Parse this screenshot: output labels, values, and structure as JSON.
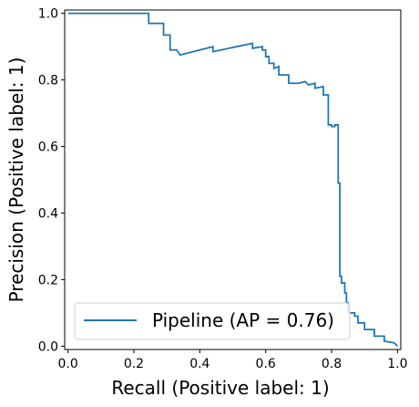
{
  "chart_data": {
    "type": "line",
    "xlabel": "Recall (Positive label: 1)",
    "ylabel": "Precision (Positive label: 1)",
    "xlim": [
      -0.01,
      1.01
    ],
    "ylim": [
      -0.01,
      1.01
    ],
    "xticks": [
      {
        "value": 0.0,
        "label": "0.0"
      },
      {
        "value": 0.2,
        "label": "0.2"
      },
      {
        "value": 0.4,
        "label": "0.4"
      },
      {
        "value": 0.6,
        "label": "0.6"
      },
      {
        "value": 0.8,
        "label": "0.8"
      },
      {
        "value": 1.0,
        "label": "1.0"
      }
    ],
    "yticks": [
      {
        "value": 0.0,
        "label": "0.0"
      },
      {
        "value": 0.2,
        "label": "0.2"
      },
      {
        "value": 0.4,
        "label": "0.4"
      },
      {
        "value": 0.6,
        "label": "0.6"
      },
      {
        "value": 0.8,
        "label": "0.8"
      },
      {
        "value": 1.0,
        "label": "1.0"
      }
    ],
    "grid": false,
    "legend": {
      "placement": "lower-left",
      "entry": "Pipeline (AP = 0.76)"
    },
    "series": [
      {
        "name": "Pipeline (AP = 0.76)",
        "color": "#1f77b4",
        "drawstyle": "steps",
        "points": [
          [
            0.0,
            1.0
          ],
          [
            0.245,
            1.0
          ],
          [
            0.245,
            0.97
          ],
          [
            0.29,
            0.97
          ],
          [
            0.29,
            0.935
          ],
          [
            0.31,
            0.935
          ],
          [
            0.31,
            0.89
          ],
          [
            0.33,
            0.89
          ],
          [
            0.33,
            0.89
          ],
          [
            0.34,
            0.875
          ],
          [
            0.44,
            0.9
          ],
          [
            0.44,
            0.885
          ],
          [
            0.56,
            0.91
          ],
          [
            0.56,
            0.895
          ],
          [
            0.59,
            0.9
          ],
          [
            0.59,
            0.89
          ],
          [
            0.6,
            0.89
          ],
          [
            0.6,
            0.87
          ],
          [
            0.61,
            0.87
          ],
          [
            0.61,
            0.85
          ],
          [
            0.625,
            0.85
          ],
          [
            0.625,
            0.835
          ],
          [
            0.64,
            0.84
          ],
          [
            0.64,
            0.815
          ],
          [
            0.67,
            0.815
          ],
          [
            0.67,
            0.79
          ],
          [
            0.7,
            0.79
          ],
          [
            0.72,
            0.795
          ],
          [
            0.73,
            0.785
          ],
          [
            0.75,
            0.79
          ],
          [
            0.75,
            0.775
          ],
          [
            0.775,
            0.78
          ],
          [
            0.775,
            0.755
          ],
          [
            0.79,
            0.755
          ],
          [
            0.79,
            0.665
          ],
          [
            0.8,
            0.665
          ],
          [
            0.8,
            0.66
          ],
          [
            0.81,
            0.66
          ],
          [
            0.81,
            0.665
          ],
          [
            0.82,
            0.665
          ],
          [
            0.82,
            0.49
          ],
          [
            0.825,
            0.49
          ],
          [
            0.825,
            0.21
          ],
          [
            0.83,
            0.21
          ],
          [
            0.83,
            0.19
          ],
          [
            0.84,
            0.19
          ],
          [
            0.84,
            0.16
          ],
          [
            0.845,
            0.16
          ],
          [
            0.845,
            0.13
          ],
          [
            0.85,
            0.13
          ],
          [
            0.85,
            0.1
          ],
          [
            0.87,
            0.1
          ],
          [
            0.87,
            0.09
          ],
          [
            0.88,
            0.09
          ],
          [
            0.88,
            0.07
          ],
          [
            0.9,
            0.07
          ],
          [
            0.9,
            0.05
          ],
          [
            0.93,
            0.05
          ],
          [
            0.93,
            0.03
          ],
          [
            0.96,
            0.03
          ],
          [
            0.96,
            0.015
          ],
          [
            0.99,
            0.01
          ],
          [
            1.0,
            0.0
          ]
        ]
      }
    ]
  }
}
